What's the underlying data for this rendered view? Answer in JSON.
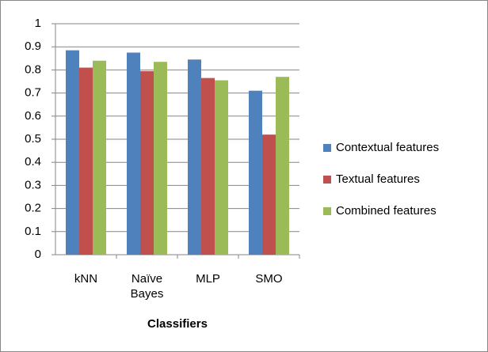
{
  "chart_data": {
    "type": "bar",
    "categories": [
      "kNN",
      "Naïve Bayes",
      "MLP",
      "SMO"
    ],
    "series": [
      {
        "name": "Contextual features",
        "color": "#4f81bd",
        "values": [
          0.885,
          0.875,
          0.845,
          0.71
        ]
      },
      {
        "name": "Textual features",
        "color": "#c0504d",
        "values": [
          0.81,
          0.795,
          0.765,
          0.52
        ]
      },
      {
        "name": "Combined features",
        "color": "#9bbb59",
        "values": [
          0.84,
          0.835,
          0.755,
          0.77
        ]
      }
    ],
    "xlabel": "Classifiers",
    "ylim": [
      0,
      1
    ],
    "yticks": [
      0,
      0.1,
      0.2,
      0.3,
      0.4,
      0.5,
      0.6,
      0.7,
      0.8,
      0.9,
      1
    ],
    "grid": true,
    "legend": "right"
  }
}
